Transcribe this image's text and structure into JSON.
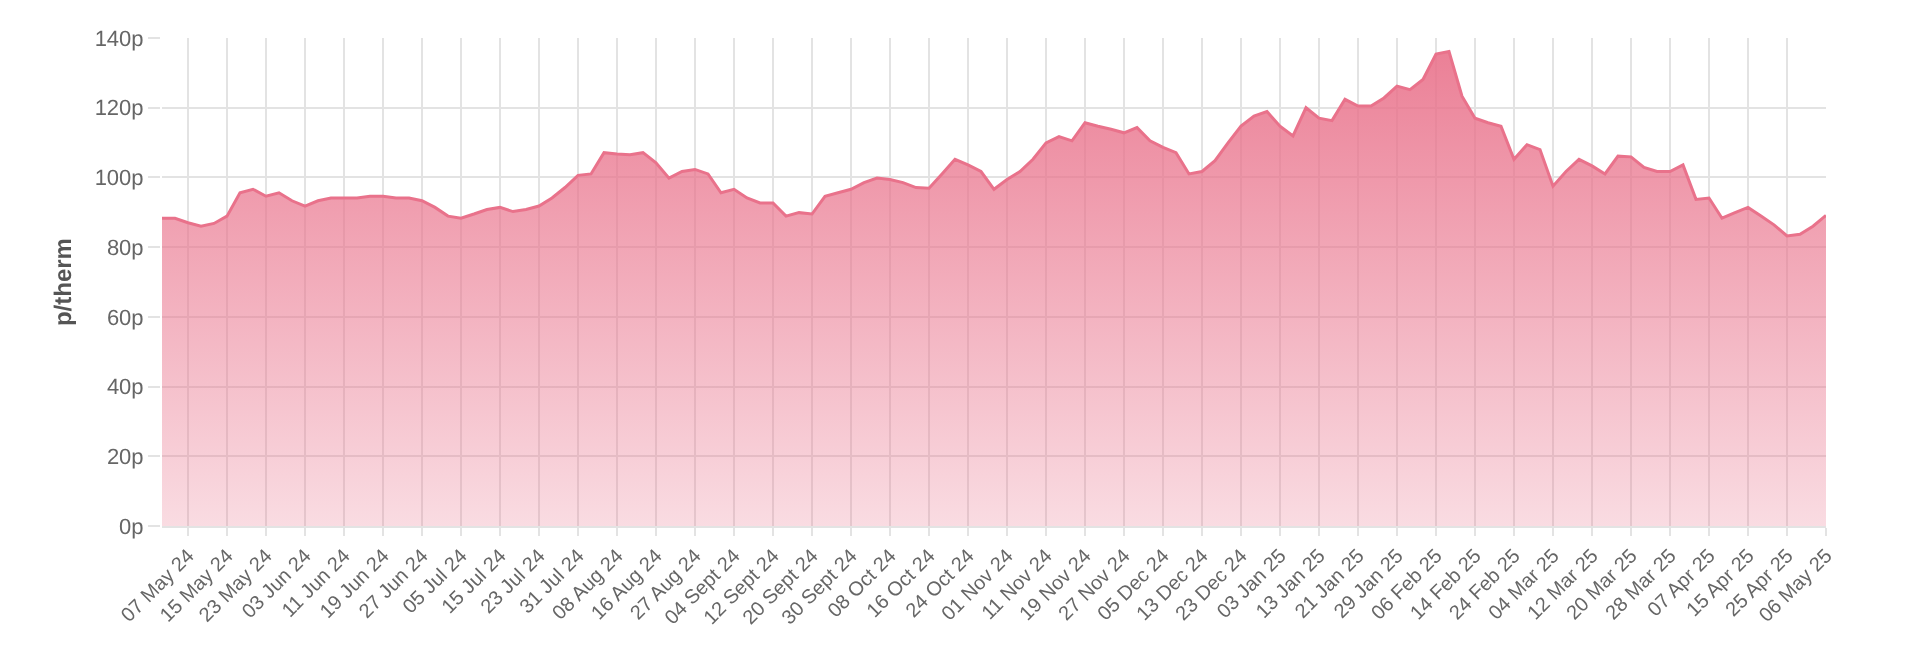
{
  "chart_data": {
    "type": "area",
    "ylabel": "p/therm",
    "categories": [
      null,
      null,
      "07 May 24",
      null,
      null,
      "15 May 24",
      null,
      null,
      "23 May 24",
      null,
      null,
      "03 Jun 24",
      null,
      null,
      "11 Jun 24",
      null,
      null,
      "19 Jun 24",
      null,
      null,
      "27 Jun 24",
      null,
      null,
      "05 Jul 24",
      null,
      null,
      "15 Jul 24",
      null,
      null,
      "23 Jul 24",
      null,
      null,
      "31 Jul 24",
      null,
      null,
      "08 Aug 24",
      null,
      null,
      "16 Aug 24",
      null,
      null,
      "27 Aug 24",
      null,
      null,
      "04 Sept 24",
      null,
      null,
      "12 Sept 24",
      null,
      null,
      "20 Sept 24",
      null,
      null,
      "30 Sept 24",
      null,
      null,
      "08 Oct 24",
      null,
      null,
      "16 Oct 24",
      null,
      null,
      "24 Oct 24",
      null,
      null,
      "01 Nov 24",
      null,
      null,
      "11 Nov 24",
      null,
      null,
      "19 Nov 24",
      null,
      null,
      "27 Nov 24",
      null,
      null,
      "05 Dec 24",
      null,
      null,
      "13 Dec 24",
      null,
      null,
      "23 Dec 24",
      null,
      null,
      "03 Jan 25",
      null,
      null,
      "13 Jan 25",
      null,
      null,
      "21 Jan 25",
      null,
      null,
      "29 Jan 25",
      null,
      null,
      "06 Feb 25",
      null,
      null,
      "14 Feb 25",
      null,
      null,
      "24 Feb 25",
      null,
      null,
      "04 Mar 25",
      null,
      null,
      "12 Mar 25",
      null,
      null,
      "20 Mar 25",
      null,
      null,
      "28 Mar 25",
      null,
      null,
      "07 Apr 25",
      null,
      null,
      "15 Apr 25",
      null,
      null,
      "25 Apr 25",
      null,
      null,
      "06 May 25"
    ],
    "series": [
      {
        "color": "#e9728b",
        "values": [
          88.3,
          88.3,
          87.0,
          86.0,
          86.8,
          88.9,
          95.6,
          96.6,
          94.6,
          95.6,
          93.3,
          91.8,
          93.3,
          94.1,
          94.1,
          94.1,
          94.6,
          94.6,
          94.1,
          94.1,
          93.3,
          91.4,
          88.9,
          88.3,
          89.5,
          90.8,
          91.4,
          90.2,
          90.8,
          91.8,
          94.1,
          97.1,
          100.6,
          101.0,
          107.1,
          106.7,
          106.5,
          107.1,
          104.2,
          99.8,
          101.7,
          102.3,
          101.0,
          95.6,
          96.6,
          94.1,
          92.7,
          92.7,
          88.9,
          89.9,
          89.5,
          94.6,
          95.6,
          96.6,
          98.5,
          99.8,
          99.4,
          98.5,
          97.1,
          96.9,
          101.0,
          105.2,
          103.6,
          101.7,
          96.6,
          99.4,
          101.7,
          105.2,
          109.9,
          111.7,
          110.5,
          115.7,
          114.7,
          113.8,
          112.8,
          114.3,
          110.5,
          108.6,
          107.1,
          101.0,
          101.7,
          104.8,
          109.9,
          114.7,
          117.6,
          118.9,
          114.7,
          111.9,
          120.0,
          117.0,
          116.3,
          122.4,
          120.5,
          120.5,
          122.8,
          126.2,
          125.2,
          128.1,
          135.4,
          136.1,
          123.3,
          117.0,
          115.7,
          114.7,
          105.2,
          109.4,
          108.0,
          97.5,
          101.7,
          105.2,
          103.3,
          101.0,
          106.1,
          105.9,
          102.9,
          101.7,
          101.7,
          103.6,
          93.7,
          94.1,
          88.3,
          89.9,
          91.4,
          88.9,
          86.4,
          83.2,
          83.7,
          86.0,
          89.1
        ]
      }
    ],
    "ylim": [
      0,
      140
    ],
    "yticks": [
      {
        "value": 0,
        "label": "0p"
      },
      {
        "value": 20,
        "label": "20p"
      },
      {
        "value": 40,
        "label": "40p"
      },
      {
        "value": 60,
        "label": "60p"
      },
      {
        "value": 80,
        "label": "80p"
      },
      {
        "value": 100,
        "label": "100p"
      },
      {
        "value": 120,
        "label": "120p"
      },
      {
        "value": 140,
        "label": "140p"
      }
    ],
    "grid": true,
    "line_style": "solid"
  }
}
